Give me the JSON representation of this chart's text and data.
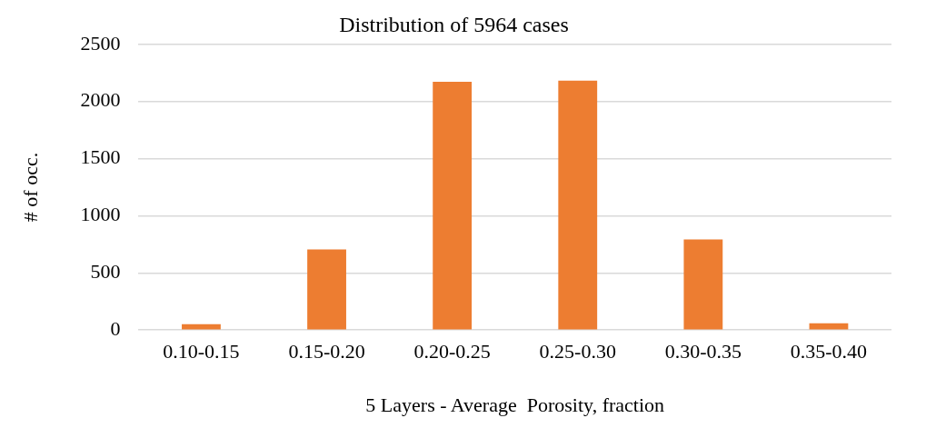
{
  "chart_data": {
    "type": "bar",
    "title": "Distribution of 5964 cases",
    "xlabel": "5 Layers - Average  Porosity, fraction",
    "ylabel": "# of occ.",
    "categories": [
      "0.10-0.15",
      "0.15-0.20",
      "0.20-0.25",
      "0.25-0.30",
      "0.30-0.35",
      "0.35-0.40"
    ],
    "values": [
      52,
      705,
      2172,
      2183,
      792,
      60
    ],
    "color": "#ed7d31",
    "ylim": [
      0,
      2500
    ],
    "yticks": [
      0,
      500,
      1000,
      1500,
      2000,
      2500
    ],
    "grid": "y",
    "legend": false
  }
}
